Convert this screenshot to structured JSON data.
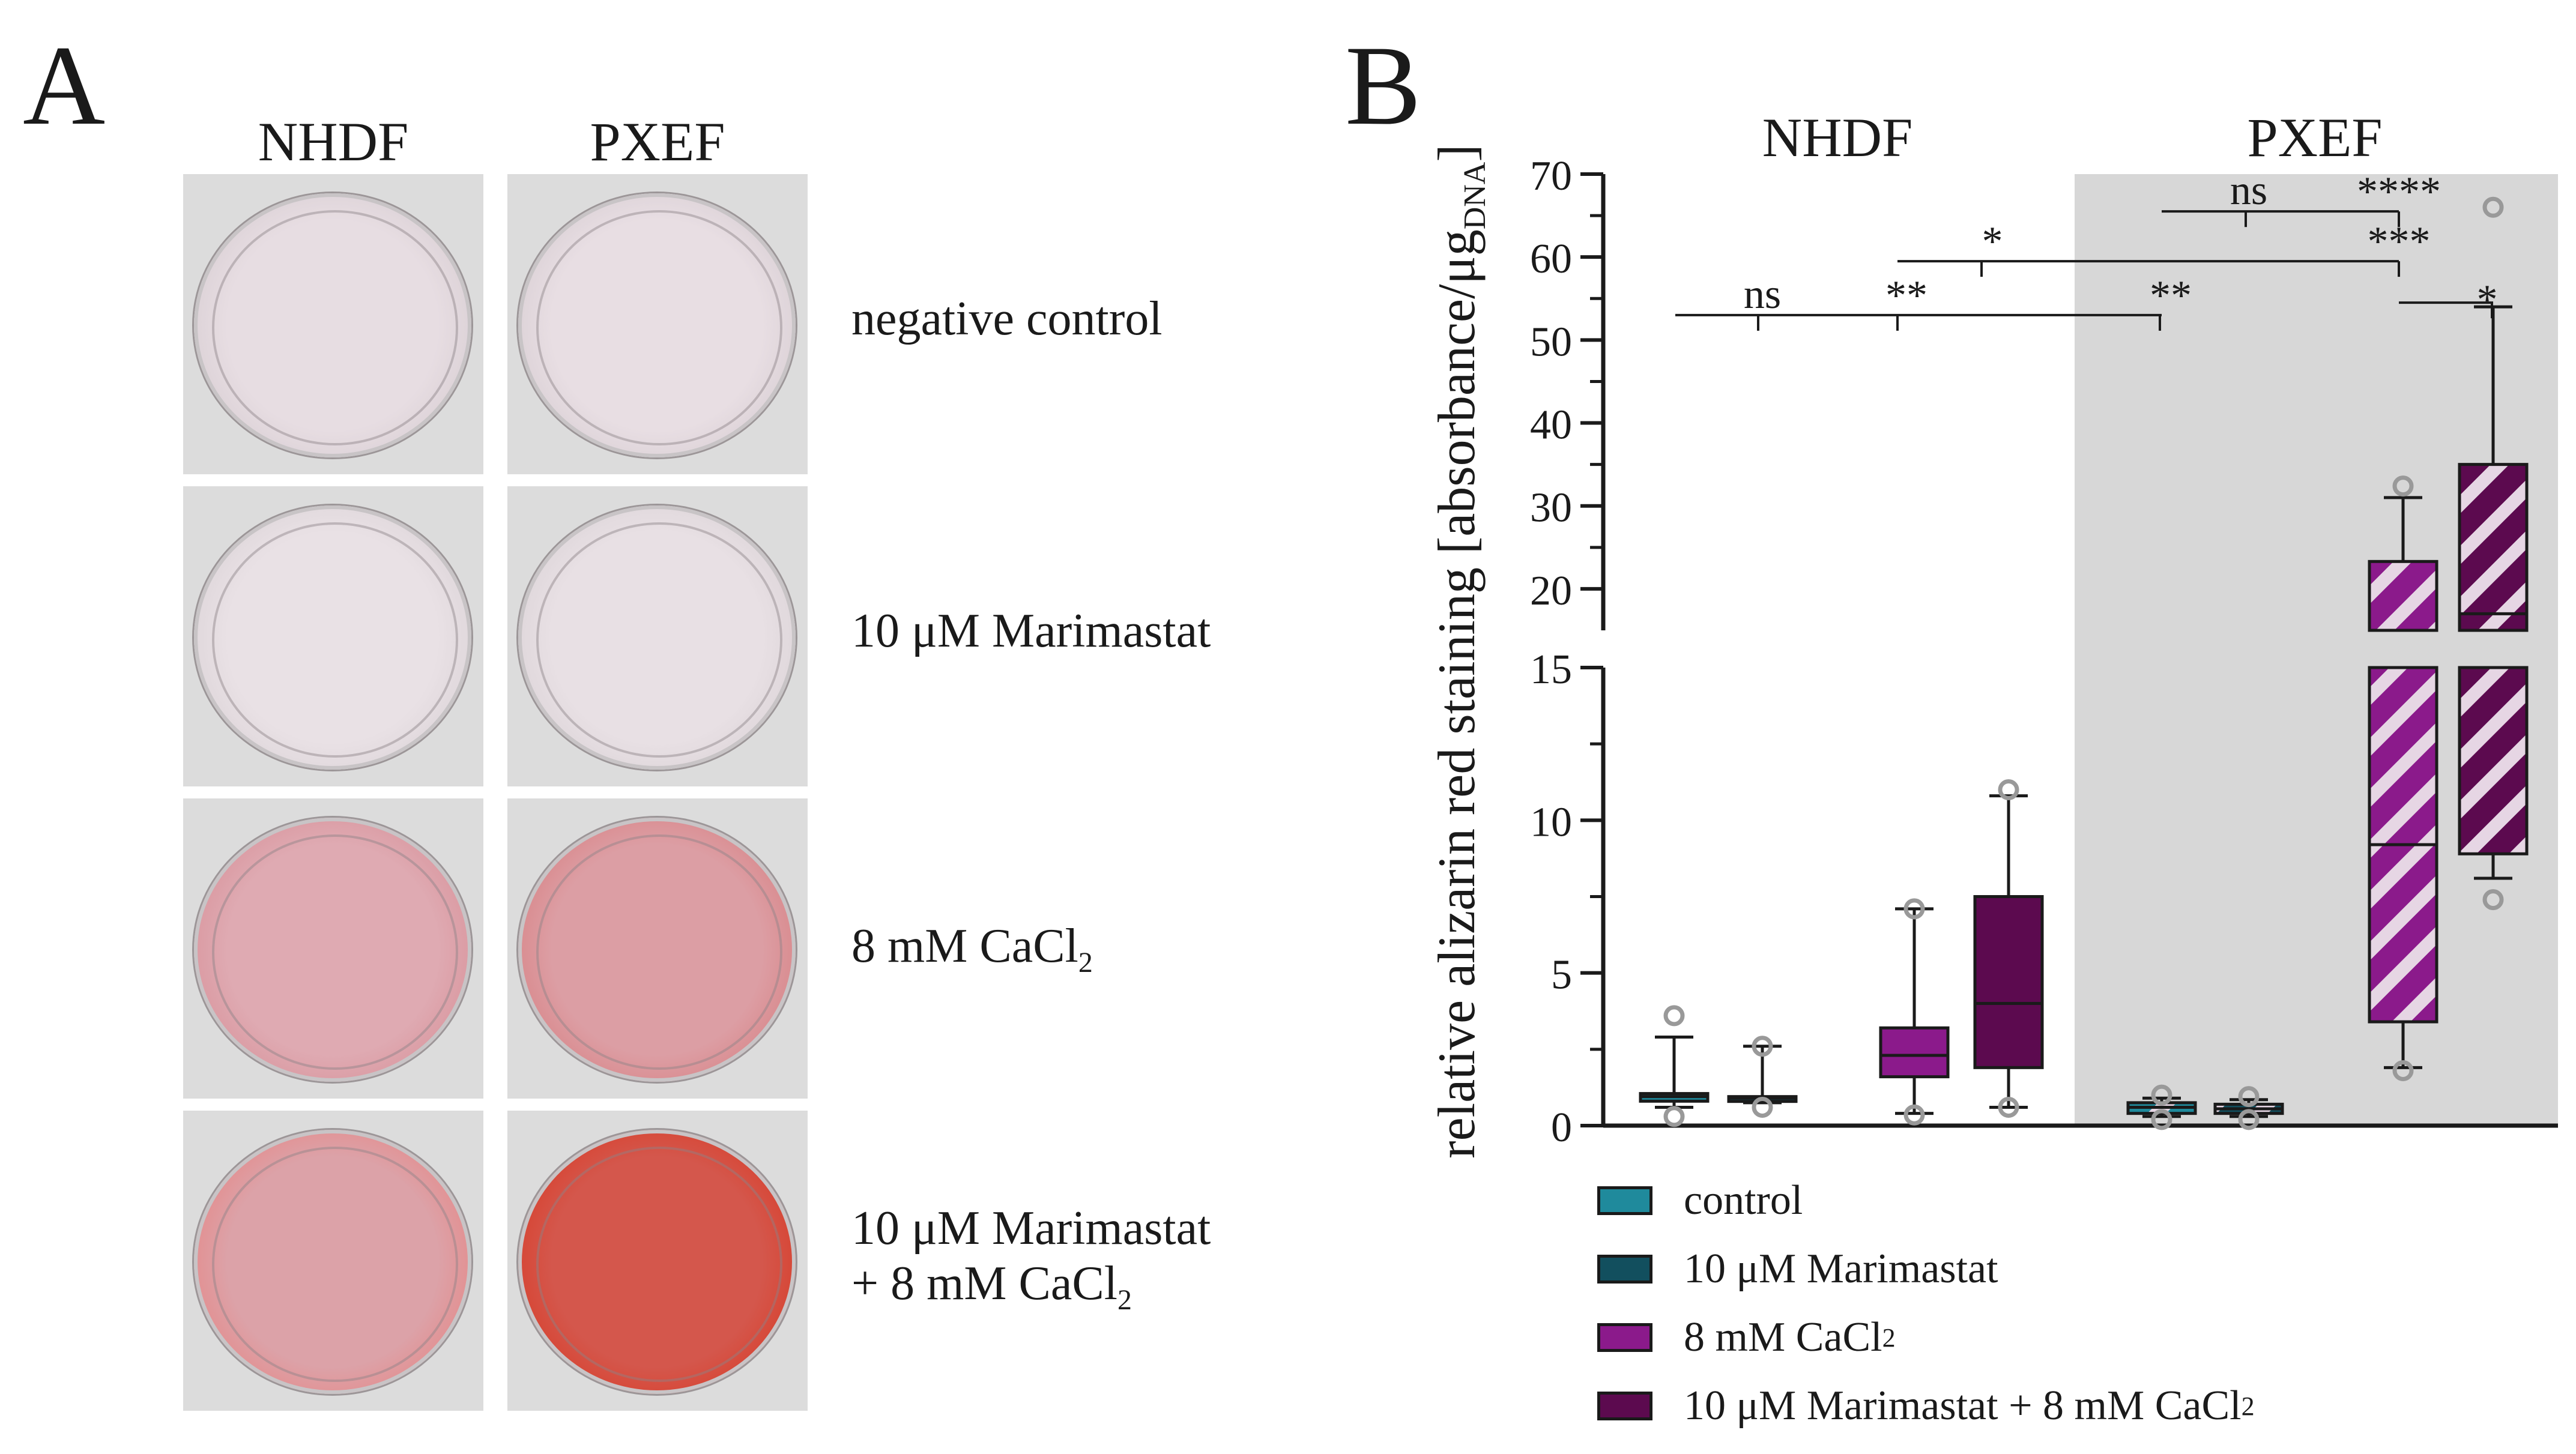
{
  "panel_a": {
    "letter": "A",
    "columns": [
      "NHDF",
      "PXEF"
    ],
    "rows": [
      {
        "label_lines": [
          "negative control"
        ]
      },
      {
        "label_lines": [
          "10 μM Marimastat"
        ]
      },
      {
        "label_lines": [
          "8 mM CaCl",
          "2",
          ""
        ]
      },
      {
        "label_lines": [
          "10 μM Marimastat",
          "+ 8 mM CaCl",
          "2"
        ]
      }
    ],
    "well_colors": [
      [
        "#e7dde2",
        "#e8dee3"
      ],
      [
        "#e9e1e5",
        "#e8e0e4"
      ],
      [
        "#dfaab2",
        "#dc9ea4"
      ],
      [
        "#dca2a8",
        "#d4574c"
      ]
    ],
    "well_edge_colors": [
      [
        "#d9cfd4",
        "#d9cfd4"
      ],
      [
        "#dcd4d8",
        "#dcd4d8"
      ],
      [
        "#d9959d",
        "#d98588"
      ],
      [
        "#e58a8a",
        "#d8402d"
      ]
    ]
  },
  "panel_b": {
    "letter": "B",
    "group_labels": [
      "NHDF",
      "PXEF"
    ]
  },
  "chart_data": {
    "type": "box",
    "title": "",
    "xlabel": "",
    "ylabel": "relative alizarin red staining [absorbance/μg",
    "ylabel_subscript": "DNA",
    "ylabel_close": "]",
    "axis_break": true,
    "y_lower_range": [
      0,
      15
    ],
    "y_upper_range": [
      15,
      70
    ],
    "y_lower_ticks": [
      "0",
      "5",
      "10",
      "15"
    ],
    "y_upper_ticks": [
      "20",
      "30",
      "40",
      "50",
      "60",
      "70"
    ],
    "y_lower_tick_values": [
      0,
      5,
      10,
      15
    ],
    "y_upper_tick_values": [
      20,
      30,
      40,
      50,
      60,
      70
    ],
    "groups": [
      "NHDF",
      "PXEF"
    ],
    "shaded_group": "PXEF",
    "series": [
      {
        "name": "control",
        "color": "#1f8a9c",
        "pattern": "solid"
      },
      {
        "name": "10 μM Marimastat",
        "color": "#124f5e",
        "pattern": "solid"
      },
      {
        "name": "8 mM CaCl",
        "name_subscript": "2",
        "color": "#8b1a8b",
        "pattern": "solid"
      },
      {
        "name": "10 μM Marimastat + 8 mM CaCl",
        "name_subscript": "2",
        "color": "#5c0a4f",
        "pattern": "solid"
      }
    ],
    "boxes": [
      {
        "group": "NHDF",
        "series": "control",
        "min": 0.6,
        "q1": 0.8,
        "median": 0.95,
        "q3": 1.05,
        "max": 2.9,
        "outliers": [
          0.3,
          3.6
        ],
        "color": "#1f8a9c",
        "hatched": false
      },
      {
        "group": "NHDF",
        "series": "10 μM Marimastat",
        "min": 0.75,
        "q1": 0.8,
        "median": 0.9,
        "q3": 0.95,
        "max": 2.6,
        "outliers": [
          0.6,
          2.6
        ],
        "color": "#124f5e",
        "hatched": false
      },
      {
        "group": "NHDF",
        "series": "8 mM CaCl2",
        "min": 0.4,
        "q1": 1.6,
        "median": 2.3,
        "q3": 3.2,
        "max": 7.1,
        "outliers": [
          0.35,
          7.1
        ],
        "color": "#8b1a8b",
        "hatched": false
      },
      {
        "group": "NHDF",
        "series": "10 μM Marimastat + 8 mM CaCl2",
        "min": 0.6,
        "q1": 1.9,
        "median": 4.0,
        "q3": 7.5,
        "max": 10.8,
        "outliers": [
          0.6,
          11.0
        ],
        "color": "#5c0a4f",
        "hatched": false
      },
      {
        "group": "PXEF",
        "series": "control",
        "min": 0.3,
        "q1": 0.4,
        "median": 0.6,
        "q3": 0.75,
        "max": 0.9,
        "outliers": [
          0.2,
          1.0
        ],
        "color": "#1f8a9c",
        "hatched": true
      },
      {
        "group": "PXEF",
        "series": "10 μM Marimastat",
        "min": 0.3,
        "q1": 0.4,
        "median": 0.55,
        "q3": 0.7,
        "max": 0.85,
        "outliers": [
          0.2,
          0.95
        ],
        "color": "#124f5e",
        "hatched": true
      },
      {
        "group": "PXEF",
        "series": "8 mM CaCl2",
        "min": 1.9,
        "q1": 3.4,
        "median": 9.2,
        "q3": 23.3,
        "max": 31.0,
        "outliers": [
          1.8,
          32.4
        ],
        "color": "#8b1a8b",
        "hatched": true
      },
      {
        "group": "PXEF",
        "series": "10 μM Marimastat + 8 mM CaCl2",
        "min": 8.1,
        "q1": 8.9,
        "median": 17.0,
        "q3": 35.0,
        "max": 54.0,
        "outliers": [
          7.4,
          66.0
        ],
        "color": "#5c0a4f",
        "hatched": true
      }
    ],
    "significance": [
      {
        "label": "ns",
        "from_box": 0,
        "to_box": 4,
        "y_value": 53,
        "mark_box": 0
      },
      {
        "label": "**",
        "from_box": 0,
        "to_box": 4,
        "y_value": 53,
        "mark_box": 2
      },
      {
        "label": "**",
        "from_box": 0,
        "to_box": 4,
        "y_value": 53,
        "mark_box": 4
      },
      {
        "label": "*",
        "from_box": 2,
        "to_box": 6,
        "y_value": 59.5,
        "mark_box": 2.5
      },
      {
        "label": "***",
        "from_box": 2,
        "to_box": 6,
        "y_value": 59.5,
        "mark_box": 6
      },
      {
        "label": "ns",
        "from_box": 4,
        "to_box": 6,
        "y_value": 65.5,
        "mark_box": 5
      },
      {
        "label": "****",
        "from_box": 4,
        "to_box": 6,
        "y_value": 65.5,
        "mark_box": 6
      },
      {
        "label": "*",
        "from_box": 6,
        "to_box": 7,
        "y_value": 54.5,
        "mark_box": 7
      }
    ]
  },
  "legend": {
    "items": [
      {
        "label": "control",
        "subscript": "",
        "color": "#1f8a9c"
      },
      {
        "label": "10 μM Marimastat",
        "subscript": "",
        "color": "#124f5e"
      },
      {
        "label": "8 mM CaCl",
        "subscript": "2",
        "color": "#8b1a8b"
      },
      {
        "label": "10 μM Marimastat + 8 mM CaCl",
        "subscript": "2",
        "color": "#5c0a4f"
      }
    ]
  }
}
